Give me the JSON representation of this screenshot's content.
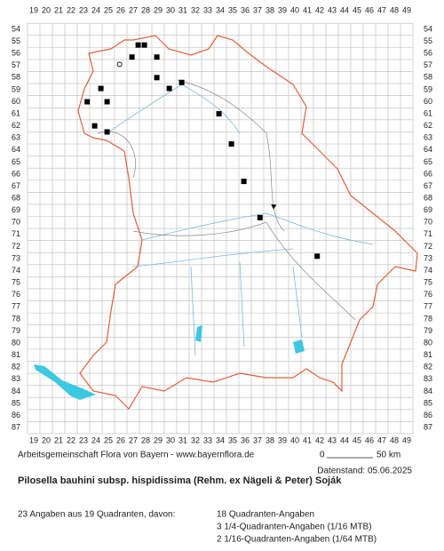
{
  "map": {
    "col_labels": [
      19,
      20,
      21,
      22,
      23,
      24,
      25,
      26,
      27,
      28,
      29,
      30,
      31,
      32,
      33,
      34,
      35,
      36,
      37,
      38,
      39,
      40,
      41,
      42,
      43,
      44,
      45,
      46,
      47,
      48,
      49
    ],
    "row_labels": [
      54,
      55,
      56,
      57,
      58,
      59,
      60,
      61,
      62,
      63,
      64,
      65,
      66,
      67,
      68,
      69,
      70,
      71,
      72,
      73,
      74,
      75,
      76,
      77,
      78,
      79,
      80,
      81,
      82,
      83,
      84,
      85,
      86,
      87
    ],
    "markers": [
      {
        "x": 27.4,
        "y": 55.3,
        "kind": "square"
      },
      {
        "x": 27.9,
        "y": 55.3,
        "kind": "square"
      },
      {
        "x": 26.9,
        "y": 56.3,
        "kind": "square"
      },
      {
        "x": 28.9,
        "y": 56.3,
        "kind": "square"
      },
      {
        "x": 28.9,
        "y": 58.0,
        "kind": "square"
      },
      {
        "x": 30.9,
        "y": 58.4,
        "kind": "square"
      },
      {
        "x": 29.9,
        "y": 58.9,
        "kind": "square"
      },
      {
        "x": 24.4,
        "y": 58.9,
        "kind": "square"
      },
      {
        "x": 23.3,
        "y": 60.0,
        "kind": "square"
      },
      {
        "x": 24.9,
        "y": 60.0,
        "kind": "square"
      },
      {
        "x": 33.9,
        "y": 61.0,
        "kind": "square"
      },
      {
        "x": 23.9,
        "y": 62.0,
        "kind": "square"
      },
      {
        "x": 24.9,
        "y": 62.5,
        "kind": "square"
      },
      {
        "x": 34.9,
        "y": 63.5,
        "kind": "square"
      },
      {
        "x": 35.9,
        "y": 66.6,
        "kind": "square"
      },
      {
        "x": 37.2,
        "y": 69.6,
        "kind": "square"
      },
      {
        "x": 41.8,
        "y": 72.8,
        "kind": "square"
      },
      {
        "x": 25.9,
        "y": 56.9,
        "kind": "circle"
      },
      {
        "x": 38.3,
        "y": 68.7,
        "kind": "triangle"
      }
    ]
  },
  "footer": {
    "credit": "Arbeitsgemeinschaft Flora von Bayern - www.bayernflora.de",
    "scale_start": "0",
    "scale_end": "50 km",
    "date": "Datenstand: 05.06.2025",
    "title": "Pilosella bauhini subsp. hispidissima (Rehm. ex Nägeli & Peter) Soják",
    "summary": "23 Angaben aus 19 Quadranten, davon:",
    "counts": [
      "18 Quadranten-Angaben",
      "3 1/4-Quadranten-Angaben (1/16 MTB)",
      "2 1/16-Quadranten-Angaben (1/64 MTB)"
    ]
  }
}
